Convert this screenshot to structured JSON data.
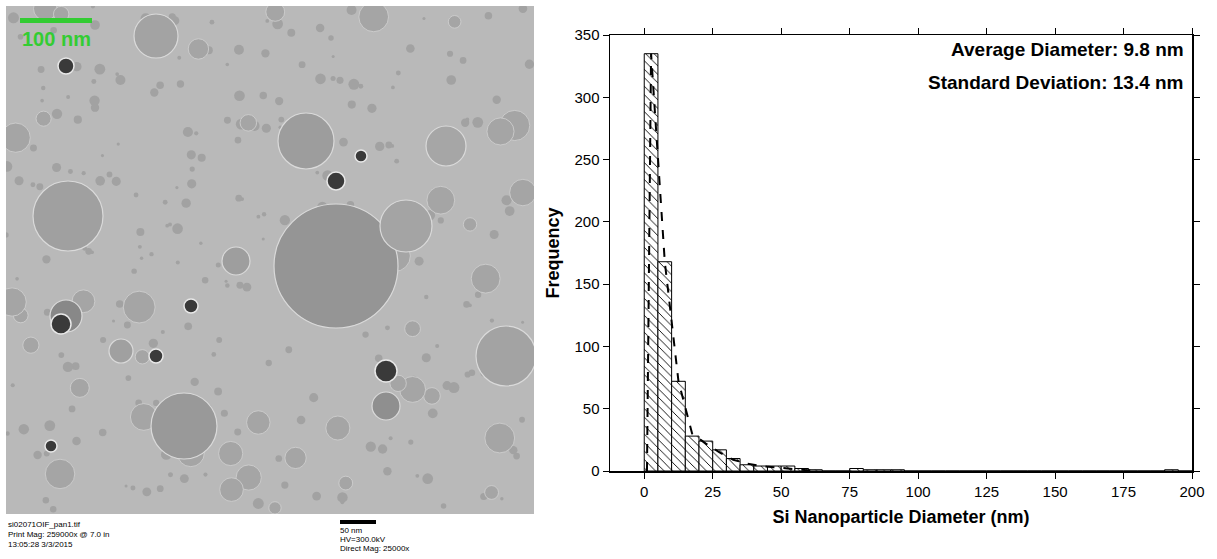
{
  "chart_data": {
    "type": "histogram",
    "x_label": "Si Nanoparticle Diameter (nm)",
    "y_label": "Frequency",
    "annotations": [
      "Average Diameter: 9.8 nm",
      "Standard Deviation: 13.4 nm"
    ],
    "bins": [
      0,
      5,
      10,
      15,
      20,
      25,
      30,
      35,
      40,
      45,
      50,
      55,
      60,
      65,
      70,
      75,
      80,
      85,
      90,
      95,
      100,
      105,
      110,
      115,
      120,
      125,
      130,
      135,
      140,
      145,
      150,
      155,
      160,
      165,
      170,
      175,
      180,
      185,
      190,
      195,
      200
    ],
    "series": [
      {
        "type": "bar",
        "color": "#ffffff",
        "values": [
          335,
          168,
          72,
          28,
          24,
          17,
          10,
          5,
          4,
          4,
          4,
          2,
          1,
          0,
          0,
          2,
          1,
          1,
          1,
          0,
          0,
          0,
          0,
          0,
          0,
          0,
          0,
          0,
          0,
          0,
          0,
          0,
          0,
          0,
          0,
          0,
          0,
          0,
          1,
          0
        ]
      },
      {
        "type": "line",
        "line_style": "dashed",
        "color": "#000000",
        "x": [
          1,
          2.5,
          7.5,
          12.5,
          17.5,
          22.5,
          27.5,
          32.5,
          37.5,
          42.5,
          47.5,
          52.5,
          57.5,
          62.5
        ],
        "values": [
          0,
          335,
          168,
          72,
          30,
          22,
          15,
          9,
          6,
          4,
          3,
          2,
          1,
          0
        ]
      }
    ],
    "xlim": [
      -12.5,
      200
    ],
    "xticks": [
      0,
      25,
      50,
      75,
      100,
      125,
      150,
      175,
      200
    ],
    "ylim": [
      0,
      350
    ],
    "yticks": [
      0,
      50,
      100,
      150,
      200,
      250,
      300,
      350
    ],
    "grid": false
  },
  "micrograph": {
    "scale_bar": "100 nm",
    "caption_left": [
      "si02071OIF_pan1.tif",
      "Print Mag: 259000x @ 7.0 in",
      "13:05:28 3/3/2015"
    ],
    "caption_right": [
      "50 nm",
      "HV=300.0kV",
      "Direct Mag: 25000x"
    ]
  }
}
